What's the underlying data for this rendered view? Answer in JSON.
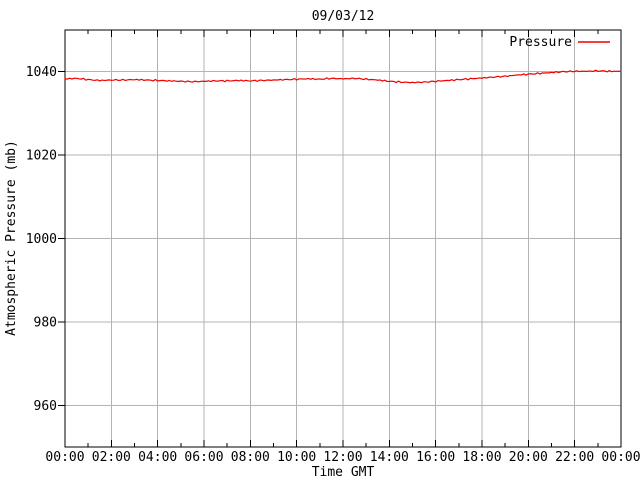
{
  "chart_data": {
    "type": "line",
    "title": "09/03/12",
    "xlabel": "Time GMT",
    "ylabel": "Atmospheric Pressure (mb)",
    "legend_position": "top-right",
    "grid": true,
    "xlim_hours": [
      0,
      24
    ],
    "ylim": [
      950,
      1050
    ],
    "x_tick_hours": [
      0,
      2,
      4,
      6,
      8,
      10,
      12,
      14,
      16,
      18,
      20,
      22,
      24
    ],
    "x_tick_labels": [
      "00:00",
      "02:00",
      "04:00",
      "06:00",
      "08:00",
      "10:00",
      "12:00",
      "14:00",
      "16:00",
      "18:00",
      "20:00",
      "22:00",
      "00:00"
    ],
    "x_minor_tick_hours": [
      1,
      3,
      5,
      7,
      9,
      11,
      13,
      15,
      17,
      19,
      21,
      23
    ],
    "y_tick_values": [
      960,
      980,
      1000,
      1020,
      1040
    ],
    "y_tick_labels": [
      "960",
      "980",
      "1000",
      "1020",
      "1040"
    ],
    "series": [
      {
        "name": "Pressure",
        "color": "#ee0000",
        "x_hours": [
          0,
          0.5,
          1,
          1.5,
          2,
          2.5,
          3,
          3.5,
          4,
          4.5,
          5,
          5.5,
          6,
          6.5,
          7,
          7.5,
          8,
          8.5,
          9,
          9.5,
          10,
          10.5,
          11,
          11.5,
          12,
          12.5,
          13,
          13.5,
          14,
          14.5,
          15,
          15.5,
          16,
          16.5,
          17,
          17.5,
          18,
          18.5,
          19,
          19.5,
          20,
          20.5,
          21,
          21.5,
          22,
          22.5,
          23,
          23.5,
          24
        ],
        "values": [
          1038.3,
          1038.4,
          1038.1,
          1037.9,
          1038.0,
          1038.0,
          1038.1,
          1038.0,
          1037.9,
          1037.8,
          1037.7,
          1037.6,
          1037.7,
          1037.8,
          1037.8,
          1037.9,
          1037.8,
          1037.9,
          1038.0,
          1038.1,
          1038.2,
          1038.3,
          1038.2,
          1038.4,
          1038.3,
          1038.4,
          1038.2,
          1038.0,
          1037.7,
          1037.5,
          1037.4,
          1037.5,
          1037.7,
          1037.9,
          1038.1,
          1038.3,
          1038.5,
          1038.7,
          1038.9,
          1039.2,
          1039.4,
          1039.6,
          1039.8,
          1040.0,
          1040.1,
          1040.1,
          1040.2,
          1040.1,
          1040.1
        ]
      }
    ],
    "colors": {
      "axis": "#000000",
      "grid": "#b3b3b3",
      "text": "#000000",
      "background": "#ffffff",
      "pressure_line": "#ee0000"
    }
  }
}
